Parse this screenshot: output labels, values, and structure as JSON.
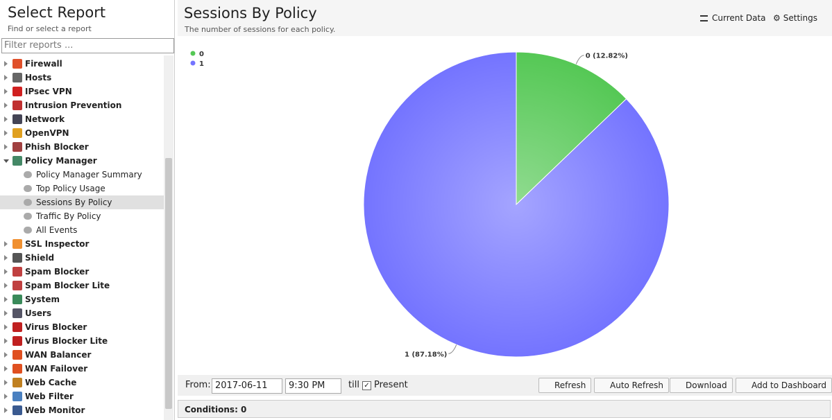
{
  "sidebar": {
    "title": "Select Report",
    "subtitle": "Find or select a report",
    "filter_placeholder": "Filter reports ...",
    "items": [
      {
        "label": "Firewall"
      },
      {
        "label": "Hosts"
      },
      {
        "label": "IPsec VPN"
      },
      {
        "label": "Intrusion Prevention"
      },
      {
        "label": "Network"
      },
      {
        "label": "OpenVPN"
      },
      {
        "label": "Phish Blocker"
      },
      {
        "label": "Policy Manager",
        "children": [
          "Policy Manager Summary",
          "Top Policy Usage",
          "Sessions By Policy",
          "Traffic By Policy",
          "All Events"
        ]
      },
      {
        "label": "SSL Inspector"
      },
      {
        "label": "Shield"
      },
      {
        "label": "Spam Blocker"
      },
      {
        "label": "Spam Blocker Lite"
      },
      {
        "label": "System"
      },
      {
        "label": "Users"
      },
      {
        "label": "Virus Blocker"
      },
      {
        "label": "Virus Blocker Lite"
      },
      {
        "label": "WAN Balancer"
      },
      {
        "label": "WAN Failover"
      },
      {
        "label": "Web Cache"
      },
      {
        "label": "Web Filter"
      },
      {
        "label": "Web Monitor"
      }
    ],
    "selected": "Sessions By Policy"
  },
  "report": {
    "title": "Sessions By Policy",
    "subtitle": "The number of sessions for each policy.",
    "buttons": [
      "Current Data",
      "Settings"
    ]
  },
  "chart_data": {
    "type": "pie",
    "categories": [
      "0",
      "1"
    ],
    "values": [
      12.82,
      87.18
    ],
    "value_labels": [
      "0 (12.82%)",
      "1 (87.18%)"
    ],
    "colors": [
      "#55c855",
      "#7474ff"
    ],
    "legend": "top-left"
  },
  "toolbar": {
    "from_label": "From:",
    "date": "2017-06-11",
    "time": "9:30 PM",
    "till": "till",
    "present": "Present",
    "buttons": [
      "Refresh",
      "Auto Refresh",
      "Download",
      "Add to Dashboard"
    ]
  },
  "conditions": "Conditions: 0"
}
